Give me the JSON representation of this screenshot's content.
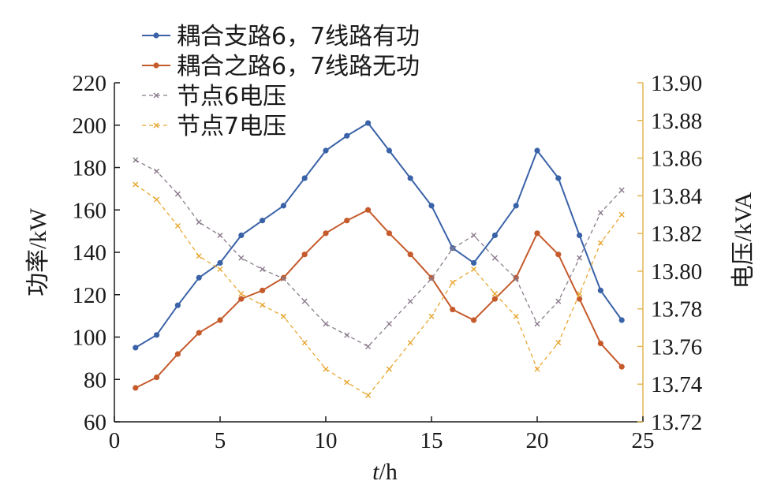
{
  "chart_data": {
    "type": "line",
    "xlabel_italic": "t",
    "xlabel_unit": "/h",
    "ylabel_left": "功率/kW",
    "ylabel_right": "电压/kVA",
    "xlim": [
      0,
      25
    ],
    "ylim_left": [
      60,
      220
    ],
    "ylim_right": [
      13.72,
      13.9
    ],
    "x_ticks": [
      "0",
      "5",
      "10",
      "15",
      "20",
      "25"
    ],
    "y_left_ticks": [
      "60",
      "80",
      "100",
      "120",
      "140",
      "160",
      "180",
      "200",
      "220"
    ],
    "y_right_ticks": [
      "13.72",
      "13.74",
      "13.76",
      "13.78",
      "13.80",
      "13.82",
      "13.84",
      "13.86",
      "13.88",
      "13.90"
    ],
    "grid": false,
    "legend_position": "top-left",
    "x": [
      1,
      2,
      3,
      4,
      5,
      6,
      7,
      8,
      9,
      10,
      11,
      12,
      13,
      14,
      15,
      16,
      17,
      18,
      19,
      20,
      21,
      22,
      23,
      24
    ],
    "series": [
      {
        "name": "耦合支路6，7线路有功",
        "axis": "left",
        "color": "#3a62a7",
        "style": "solid",
        "marker": "circle",
        "values": [
          95,
          101,
          115,
          128,
          135,
          148,
          155,
          162,
          175,
          188,
          195,
          201,
          188,
          175,
          162,
          142,
          135,
          148,
          162,
          188,
          175,
          148,
          122,
          108
        ]
      },
      {
        "name": "耦合之路6，7线路无功",
        "axis": "left",
        "color": "#c55a2b",
        "style": "solid",
        "marker": "circle",
        "values": [
          76,
          81,
          92,
          102,
          108,
          118,
          122,
          128,
          139,
          149,
          155,
          160,
          149,
          139,
          128,
          113,
          108,
          118,
          128,
          149,
          139,
          118,
          97,
          86
        ]
      },
      {
        "name": "节点6电压",
        "axis": "right",
        "color": "#8a7b8c",
        "style": "dashed",
        "marker": "x",
        "values": [
          13.859,
          13.853,
          13.841,
          13.826,
          13.819,
          13.807,
          13.801,
          13.796,
          13.784,
          13.772,
          13.766,
          13.76,
          13.772,
          13.784,
          13.796,
          13.812,
          13.819,
          13.807,
          13.796,
          13.772,
          13.784,
          13.807,
          13.831,
          13.843
        ]
      },
      {
        "name": "节点7电压",
        "axis": "right",
        "color": "#e8a732",
        "style": "dashed",
        "marker": "x",
        "values": [
          13.846,
          13.838,
          13.824,
          13.808,
          13.801,
          13.788,
          13.782,
          13.776,
          13.762,
          13.748,
          13.741,
          13.734,
          13.748,
          13.762,
          13.776,
          13.794,
          13.801,
          13.788,
          13.776,
          13.748,
          13.762,
          13.788,
          13.815,
          13.83
        ]
      }
    ]
  }
}
